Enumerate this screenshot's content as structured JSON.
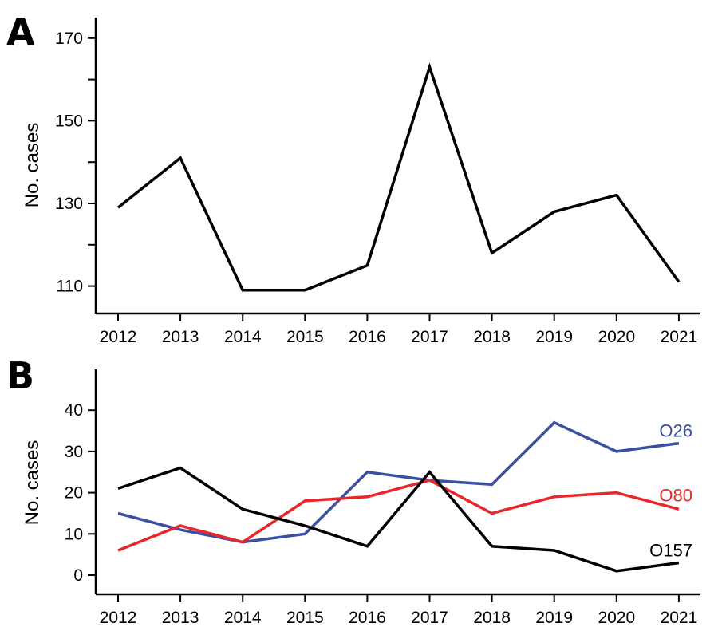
{
  "chart_data": [
    {
      "type": "line",
      "panel": "A",
      "ylabel": "No. cases",
      "xlabel": "",
      "x": [
        "2012",
        "2013",
        "2014",
        "2015",
        "2016",
        "2017",
        "2018",
        "2019",
        "2020",
        "2021"
      ],
      "ylim": [
        105,
        175
      ],
      "yticks_major": [
        110,
        130,
        150,
        170
      ],
      "yticks_minor": [
        120,
        140,
        160
      ],
      "grid": false,
      "series": [
        {
          "values": [
            129,
            141,
            109,
            109,
            115,
            163,
            118,
            128,
            132,
            111
          ],
          "color": "#000000"
        }
      ]
    },
    {
      "type": "line",
      "panel": "B",
      "ylabel": "No. cases",
      "xlabel": "",
      "x": [
        "2012",
        "2013",
        "2014",
        "2015",
        "2016",
        "2017",
        "2018",
        "2019",
        "2020",
        "2021"
      ],
      "ylim": [
        -5,
        50
      ],
      "yticks_major": [
        0,
        10,
        20,
        30,
        40
      ],
      "grid": false,
      "series": [
        {
          "name": "O26",
          "values": [
            15,
            11,
            8,
            10,
            25,
            23,
            22,
            37,
            30,
            32
          ],
          "color": "#3b4fa3"
        },
        {
          "name": "O80",
          "values": [
            6,
            12,
            8,
            18,
            19,
            23,
            15,
            19,
            20,
            16
          ],
          "color": "#e8262b"
        },
        {
          "name": "O157",
          "values": [
            21,
            26,
            16,
            12,
            7,
            25,
            7,
            6,
            1,
            3
          ],
          "color": "#000000"
        }
      ]
    }
  ]
}
